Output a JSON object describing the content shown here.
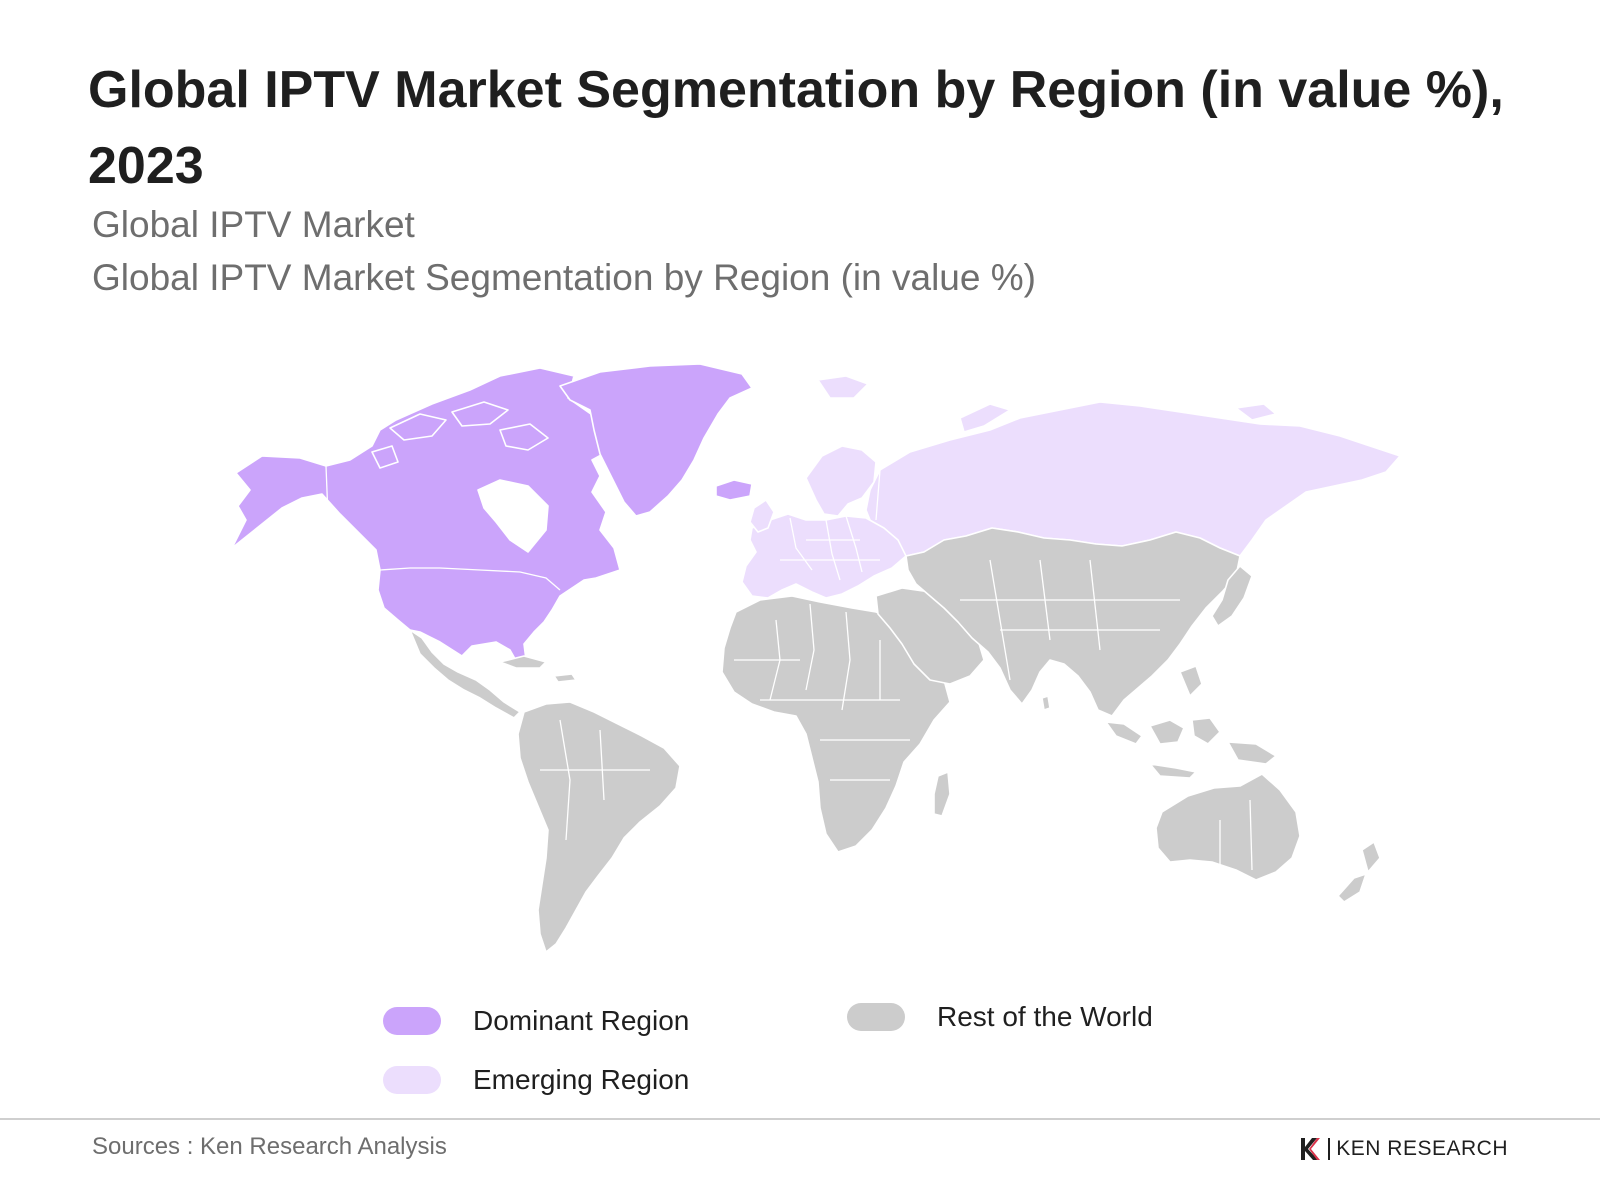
{
  "title": "Global IPTV Market Segmentation by Region (in value %), 2023",
  "subtitle_1": "Global IPTV Market",
  "subtitle_2": "Global IPTV Market Segmentation by Region (in value %)",
  "colors": {
    "dominant": "#cba4fb",
    "emerging": "#ecdefd",
    "rest": "#cccccc"
  },
  "regions": {
    "dominant": [
      "North America",
      "Greenland"
    ],
    "emerging": [
      "Europe",
      "Russia",
      "Svalbard"
    ],
    "rest": [
      "Central America",
      "South America",
      "Africa",
      "Middle East",
      "Asia",
      "Oceania"
    ]
  },
  "legend": {
    "dominant": "Dominant Region",
    "emerging": "Emerging Region",
    "rest": "Rest of the World"
  },
  "source": "Sources : Ken Research Analysis",
  "brand": {
    "name": "KEN RESEARCH",
    "logo_icon": "ken-research-logo-icon"
  }
}
